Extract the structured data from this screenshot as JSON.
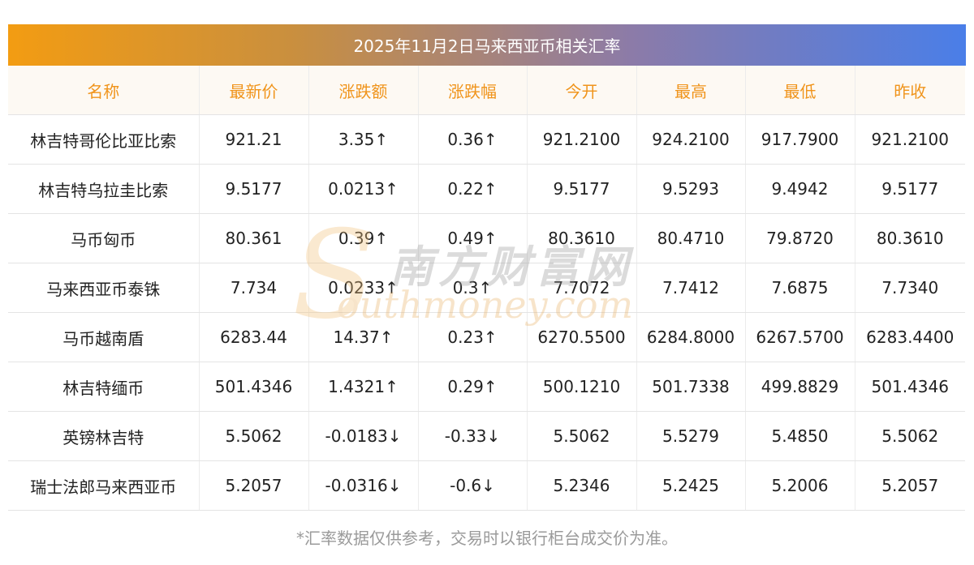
{
  "title": "2025年11月2日马来西亚币相关汇率",
  "headers": [
    "名称",
    "最新价",
    "涨跌额",
    "涨跌幅",
    "今开",
    "最高",
    "最低",
    "昨收"
  ],
  "rows": [
    {
      "name": "林吉特哥伦比亚比索",
      "latest": "921.21",
      "change": "3.35↑",
      "pct": "0.36↑",
      "open": "921.2100",
      "high": "924.2100",
      "low": "917.7900",
      "prev": "921.2100",
      "trend": "up"
    },
    {
      "name": "林吉特乌拉圭比索",
      "latest": "9.5177",
      "change": "0.0213↑",
      "pct": "0.22↑",
      "open": "9.5177",
      "high": "9.5293",
      "low": "9.4942",
      "prev": "9.5177",
      "trend": "up"
    },
    {
      "name": "马币匈币",
      "latest": "80.361",
      "change": "0.39↑",
      "pct": "0.49↑",
      "open": "80.3610",
      "high": "80.4710",
      "low": "79.8720",
      "prev": "80.3610",
      "trend": "up"
    },
    {
      "name": "马来西亚币泰铢",
      "latest": "7.734",
      "change": "0.0233↑",
      "pct": "0.3↑",
      "open": "7.7072",
      "high": "7.7412",
      "low": "7.6875",
      "prev": "7.7340",
      "trend": "up"
    },
    {
      "name": "马币越南盾",
      "latest": "6283.44",
      "change": "14.37↑",
      "pct": "0.23↑",
      "open": "6270.5500",
      "high": "6284.8000",
      "low": "6267.5700",
      "prev": "6283.4400",
      "trend": "up"
    },
    {
      "name": "林吉特缅币",
      "latest": "501.4346",
      "change": "1.4321↑",
      "pct": "0.29↑",
      "open": "500.1210",
      "high": "501.7338",
      "low": "499.8829",
      "prev": "501.4346",
      "trend": "up"
    },
    {
      "name": "英镑林吉特",
      "latest": "5.5062",
      "change": "-0.0183↓",
      "pct": "-0.33↓",
      "open": "5.5062",
      "high": "5.5279",
      "low": "5.4850",
      "prev": "5.5062",
      "trend": "down"
    },
    {
      "name": "瑞士法郎马来西亚币",
      "latest": "5.2057",
      "change": "-0.0316↓",
      "pct": "-0.6↓",
      "open": "5.2346",
      "high": "5.2425",
      "low": "5.2006",
      "prev": "5.2057",
      "trend": "down"
    }
  ],
  "watermark": {
    "cn": "南方财富网",
    "en": "outhmoney.com",
    "logo_letter": "S"
  },
  "footnote": "*汇率数据仅供参考，交易时以银行柜台成交价为准。",
  "colors": {
    "up": "#e8201e",
    "down": "#14920f",
    "header_text": "#f0941b",
    "header_bg": "#fdf9f3"
  }
}
